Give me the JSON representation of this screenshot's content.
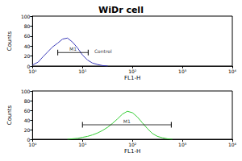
{
  "title": "WiDr cell",
  "chart_data": [
    {
      "type": "line",
      "x_label": "FL1-H",
      "y_label": "Counts",
      "x": [
        1,
        1.3,
        1.6,
        2,
        2.5,
        3.2,
        4,
        5,
        6.3,
        8,
        10,
        12.6,
        15.8,
        20,
        25,
        32
      ],
      "values": [
        2,
        8,
        18,
        28,
        38,
        46,
        54,
        56,
        48,
        36,
        22,
        12,
        6,
        3,
        1,
        0
      ],
      "color": "#3a3ab8",
      "log": "x",
      "xlim": [
        1,
        10000
      ],
      "xticks": [
        {
          "value": 1,
          "label": "10⁰"
        },
        {
          "value": 10,
          "label": "10¹"
        },
        {
          "value": 100,
          "label": "10²"
        },
        {
          "value": 1000,
          "label": "10³"
        },
        {
          "value": 10000,
          "label": "10⁴"
        }
      ],
      "ylim": [
        0,
        100
      ],
      "yticks": [
        0,
        20,
        40,
        60,
        80,
        100
      ],
      "grid": false,
      "markers": [
        {
          "label": "M1",
          "x_range": [
            3.2,
            13
          ],
          "y": 27
        }
      ],
      "annotations": [
        {
          "text": "Control",
          "x": 16,
          "y": 30
        }
      ]
    },
    {
      "type": "line",
      "x_label": "FL1-H",
      "y_label": "Counts",
      "x": [
        5,
        6.3,
        8,
        10,
        12.6,
        15.8,
        20,
        25,
        32,
        40,
        50,
        63,
        79,
        100,
        126,
        158,
        200,
        251,
        316,
        400,
        500,
        630
      ],
      "values": [
        0,
        1,
        2,
        4,
        6,
        9,
        13,
        18,
        25,
        33,
        42,
        52,
        58,
        55,
        46,
        34,
        22,
        12,
        6,
        3,
        1,
        0
      ],
      "color": "#33cc33",
      "log": "x",
      "xlim": [
        1,
        10000
      ],
      "xticks": [
        {
          "value": 1,
          "label": "10⁰"
        },
        {
          "value": 10,
          "label": "10¹"
        },
        {
          "value": 100,
          "label": "10²"
        },
        {
          "value": 1000,
          "label": "10³"
        },
        {
          "value": 10000,
          "label": "10⁴"
        }
      ],
      "ylim": [
        0,
        100
      ],
      "yticks": [
        0,
        20,
        40,
        60,
        80,
        100
      ],
      "grid": false,
      "markers": [
        {
          "label": "M1",
          "x_range": [
            10,
            600
          ],
          "y": 30
        }
      ],
      "annotations": []
    }
  ]
}
